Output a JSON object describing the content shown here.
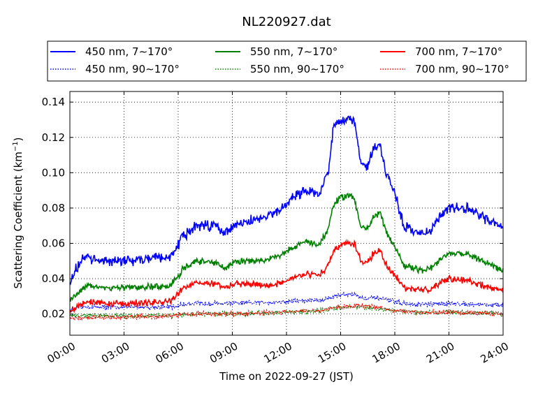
{
  "chart_data": {
    "type": "line",
    "title": "NL220927.dat",
    "xlabel": "Time on 2022-09-27 (JST)",
    "ylabel": "Scattering Coefficient (km",
    "ylabel_sup": "−1",
    "ylabel_close": ")",
    "xlim": [
      0,
      24
    ],
    "ylim": [
      0.008,
      0.146
    ],
    "x_ticks": [
      0,
      3,
      6,
      9,
      12,
      15,
      18,
      21,
      24
    ],
    "x_tick_labels": [
      "00:00",
      "03:00",
      "06:00",
      "09:00",
      "12:00",
      "15:00",
      "18:00",
      "21:00",
      "24:00"
    ],
    "y_ticks": [
      0.02,
      0.04,
      0.06,
      0.08,
      0.1,
      0.12,
      0.14
    ],
    "y_tick_labels": [
      "0.02",
      "0.04",
      "0.06",
      "0.08",
      "0.10",
      "0.12",
      "0.14"
    ],
    "grid": true,
    "legend_position": "top, above plot, 3 columns",
    "series": [
      {
        "name": "450 nm, 7∼170°",
        "color": "#0000ff",
        "style": "solid",
        "noise": 0.0035,
        "x": [
          0,
          0.3,
          0.8,
          1.5,
          2.5,
          3.5,
          4.5,
          5.5,
          5.8,
          6.2,
          7,
          8,
          8.6,
          9.2,
          10,
          11,
          11.8,
          12.3,
          13,
          13.8,
          14.3,
          14.6,
          15,
          15.5,
          15.8,
          16.1,
          16.5,
          16.8,
          17.2,
          17.5,
          18,
          18.5,
          19,
          19.5,
          20,
          20.5,
          21,
          22,
          23,
          24
        ],
        "y": [
          0.037,
          0.045,
          0.052,
          0.051,
          0.05,
          0.05,
          0.052,
          0.052,
          0.055,
          0.063,
          0.07,
          0.07,
          0.066,
          0.07,
          0.073,
          0.075,
          0.08,
          0.086,
          0.09,
          0.088,
          0.1,
          0.125,
          0.13,
          0.131,
          0.128,
          0.105,
          0.104,
          0.115,
          0.115,
          0.1,
          0.088,
          0.07,
          0.068,
          0.066,
          0.067,
          0.076,
          0.08,
          0.08,
          0.074,
          0.069
        ]
      },
      {
        "name": "450 nm, 90∼170°",
        "color": "#0000ff",
        "style": "dotted",
        "noise": 0.0016,
        "x": [
          0,
          0.5,
          2,
          4,
          5.8,
          6.5,
          9,
          12,
          14,
          15,
          15.8,
          16.2,
          17,
          18,
          19,
          21,
          24
        ],
        "y": [
          0.022,
          0.024,
          0.024,
          0.024,
          0.024,
          0.026,
          0.026,
          0.027,
          0.028,
          0.031,
          0.031,
          0.029,
          0.029,
          0.027,
          0.025,
          0.026,
          0.025
        ]
      },
      {
        "name": "550 nm, 7∼170°",
        "color": "#008000",
        "style": "solid",
        "noise": 0.0022,
        "x": [
          0,
          0.4,
          1,
          2,
          3.5,
          5.5,
          5.9,
          6.3,
          7,
          8,
          8.6,
          9.2,
          10,
          11,
          11.8,
          12.3,
          13,
          13.8,
          14.3,
          14.6,
          15,
          15.5,
          15.8,
          16.1,
          16.5,
          16.8,
          17.2,
          17.5,
          18,
          18.5,
          19,
          19.5,
          20,
          20.5,
          21,
          22,
          23,
          24
        ],
        "y": [
          0.028,
          0.032,
          0.036,
          0.035,
          0.035,
          0.036,
          0.04,
          0.046,
          0.05,
          0.049,
          0.046,
          0.05,
          0.05,
          0.051,
          0.054,
          0.057,
          0.061,
          0.059,
          0.068,
          0.082,
          0.086,
          0.087,
          0.084,
          0.07,
          0.068,
          0.075,
          0.078,
          0.067,
          0.058,
          0.047,
          0.046,
          0.045,
          0.046,
          0.051,
          0.055,
          0.054,
          0.049,
          0.045
        ]
      },
      {
        "name": "550 nm, 90∼170°",
        "color": "#008000",
        "style": "dotted",
        "noise": 0.0016,
        "x": [
          0,
          3,
          6,
          6.5,
          9,
          12,
          14,
          15,
          16,
          17,
          18,
          19,
          21,
          24
        ],
        "y": [
          0.019,
          0.019,
          0.019,
          0.02,
          0.02,
          0.021,
          0.022,
          0.024,
          0.024,
          0.023,
          0.022,
          0.021,
          0.021,
          0.02
        ]
      },
      {
        "name": "700 nm, 7∼170°",
        "color": "#ff0000",
        "style": "solid",
        "noise": 0.0022,
        "x": [
          0,
          0.4,
          1,
          2,
          3.5,
          5.5,
          5.9,
          6.3,
          7,
          8,
          8.6,
          9.2,
          10,
          11,
          11.8,
          12.3,
          13,
          13.8,
          14.3,
          14.6,
          15,
          15.5,
          15.8,
          16.1,
          16.5,
          16.8,
          17.2,
          17.5,
          18,
          18.5,
          19,
          19.5,
          20,
          20.5,
          21,
          22,
          23,
          24
        ],
        "y": [
          0.021,
          0.024,
          0.027,
          0.026,
          0.026,
          0.027,
          0.03,
          0.035,
          0.038,
          0.037,
          0.035,
          0.037,
          0.037,
          0.036,
          0.038,
          0.04,
          0.043,
          0.042,
          0.047,
          0.056,
          0.059,
          0.06,
          0.059,
          0.05,
          0.049,
          0.054,
          0.056,
          0.048,
          0.042,
          0.035,
          0.034,
          0.034,
          0.034,
          0.037,
          0.04,
          0.039,
          0.036,
          0.033
        ]
      },
      {
        "name": "700 nm, 90∼170°",
        "color": "#ff0000",
        "style": "dotted",
        "noise": 0.0016,
        "x": [
          0,
          3,
          6,
          6.5,
          9,
          12,
          14,
          15,
          16,
          17,
          18,
          19,
          21,
          24
        ],
        "y": [
          0.018,
          0.018,
          0.019,
          0.02,
          0.02,
          0.021,
          0.022,
          0.024,
          0.025,
          0.024,
          0.022,
          0.021,
          0.021,
          0.02
        ]
      }
    ]
  }
}
